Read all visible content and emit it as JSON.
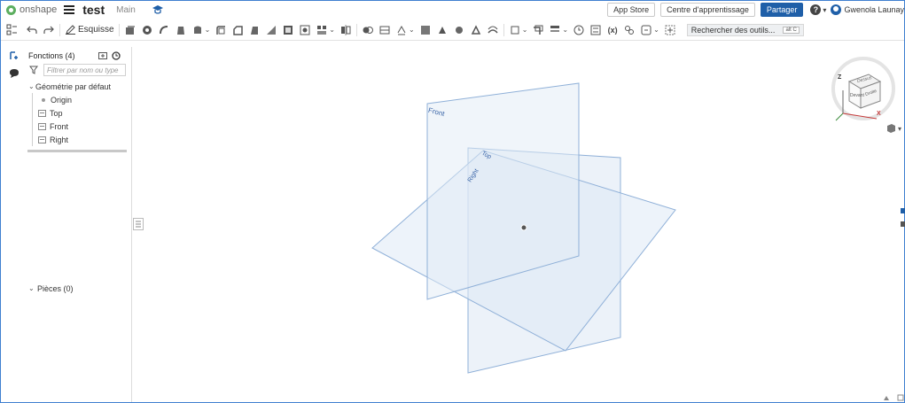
{
  "header": {
    "logo_text": "onshape",
    "doc_title": "test",
    "branch": "Main",
    "app_store": "App Store",
    "learning_center": "Centre d'apprentissage",
    "share": "Partager",
    "help": "?",
    "user_name": "Gwenola Launay"
  },
  "toolbar": {
    "sketch_label": "Esquisse",
    "search_tools": "Rechercher des outils...",
    "search_shortcut": "alt C"
  },
  "feature_panel": {
    "title": "Fonctions (4)",
    "filter_placeholder": "Filtrer par nom ou type",
    "default_geometry": "Géométrie par défaut",
    "items": [
      {
        "label": "Origin",
        "icon": "origin-point-icon"
      },
      {
        "label": "Top",
        "icon": "plane-icon"
      },
      {
        "label": "Front",
        "icon": "plane-icon"
      },
      {
        "label": "Right",
        "icon": "plane-icon"
      }
    ],
    "parts": "Pièces (0)"
  },
  "viewport": {
    "planes": {
      "front": "Front",
      "top": "Top",
      "right": "Right"
    },
    "view_cube": {
      "front": "Devant",
      "top": "Dessus",
      "right": "Droite",
      "axis_z": "Z",
      "axis_x": "X"
    }
  },
  "colors": {
    "accent": "#1f5fa8",
    "plane_fill": "#dfe9f5",
    "plane_stroke": "#8fb0d8",
    "plane_label": "#3b66a8",
    "logo": "#5cae5f"
  }
}
